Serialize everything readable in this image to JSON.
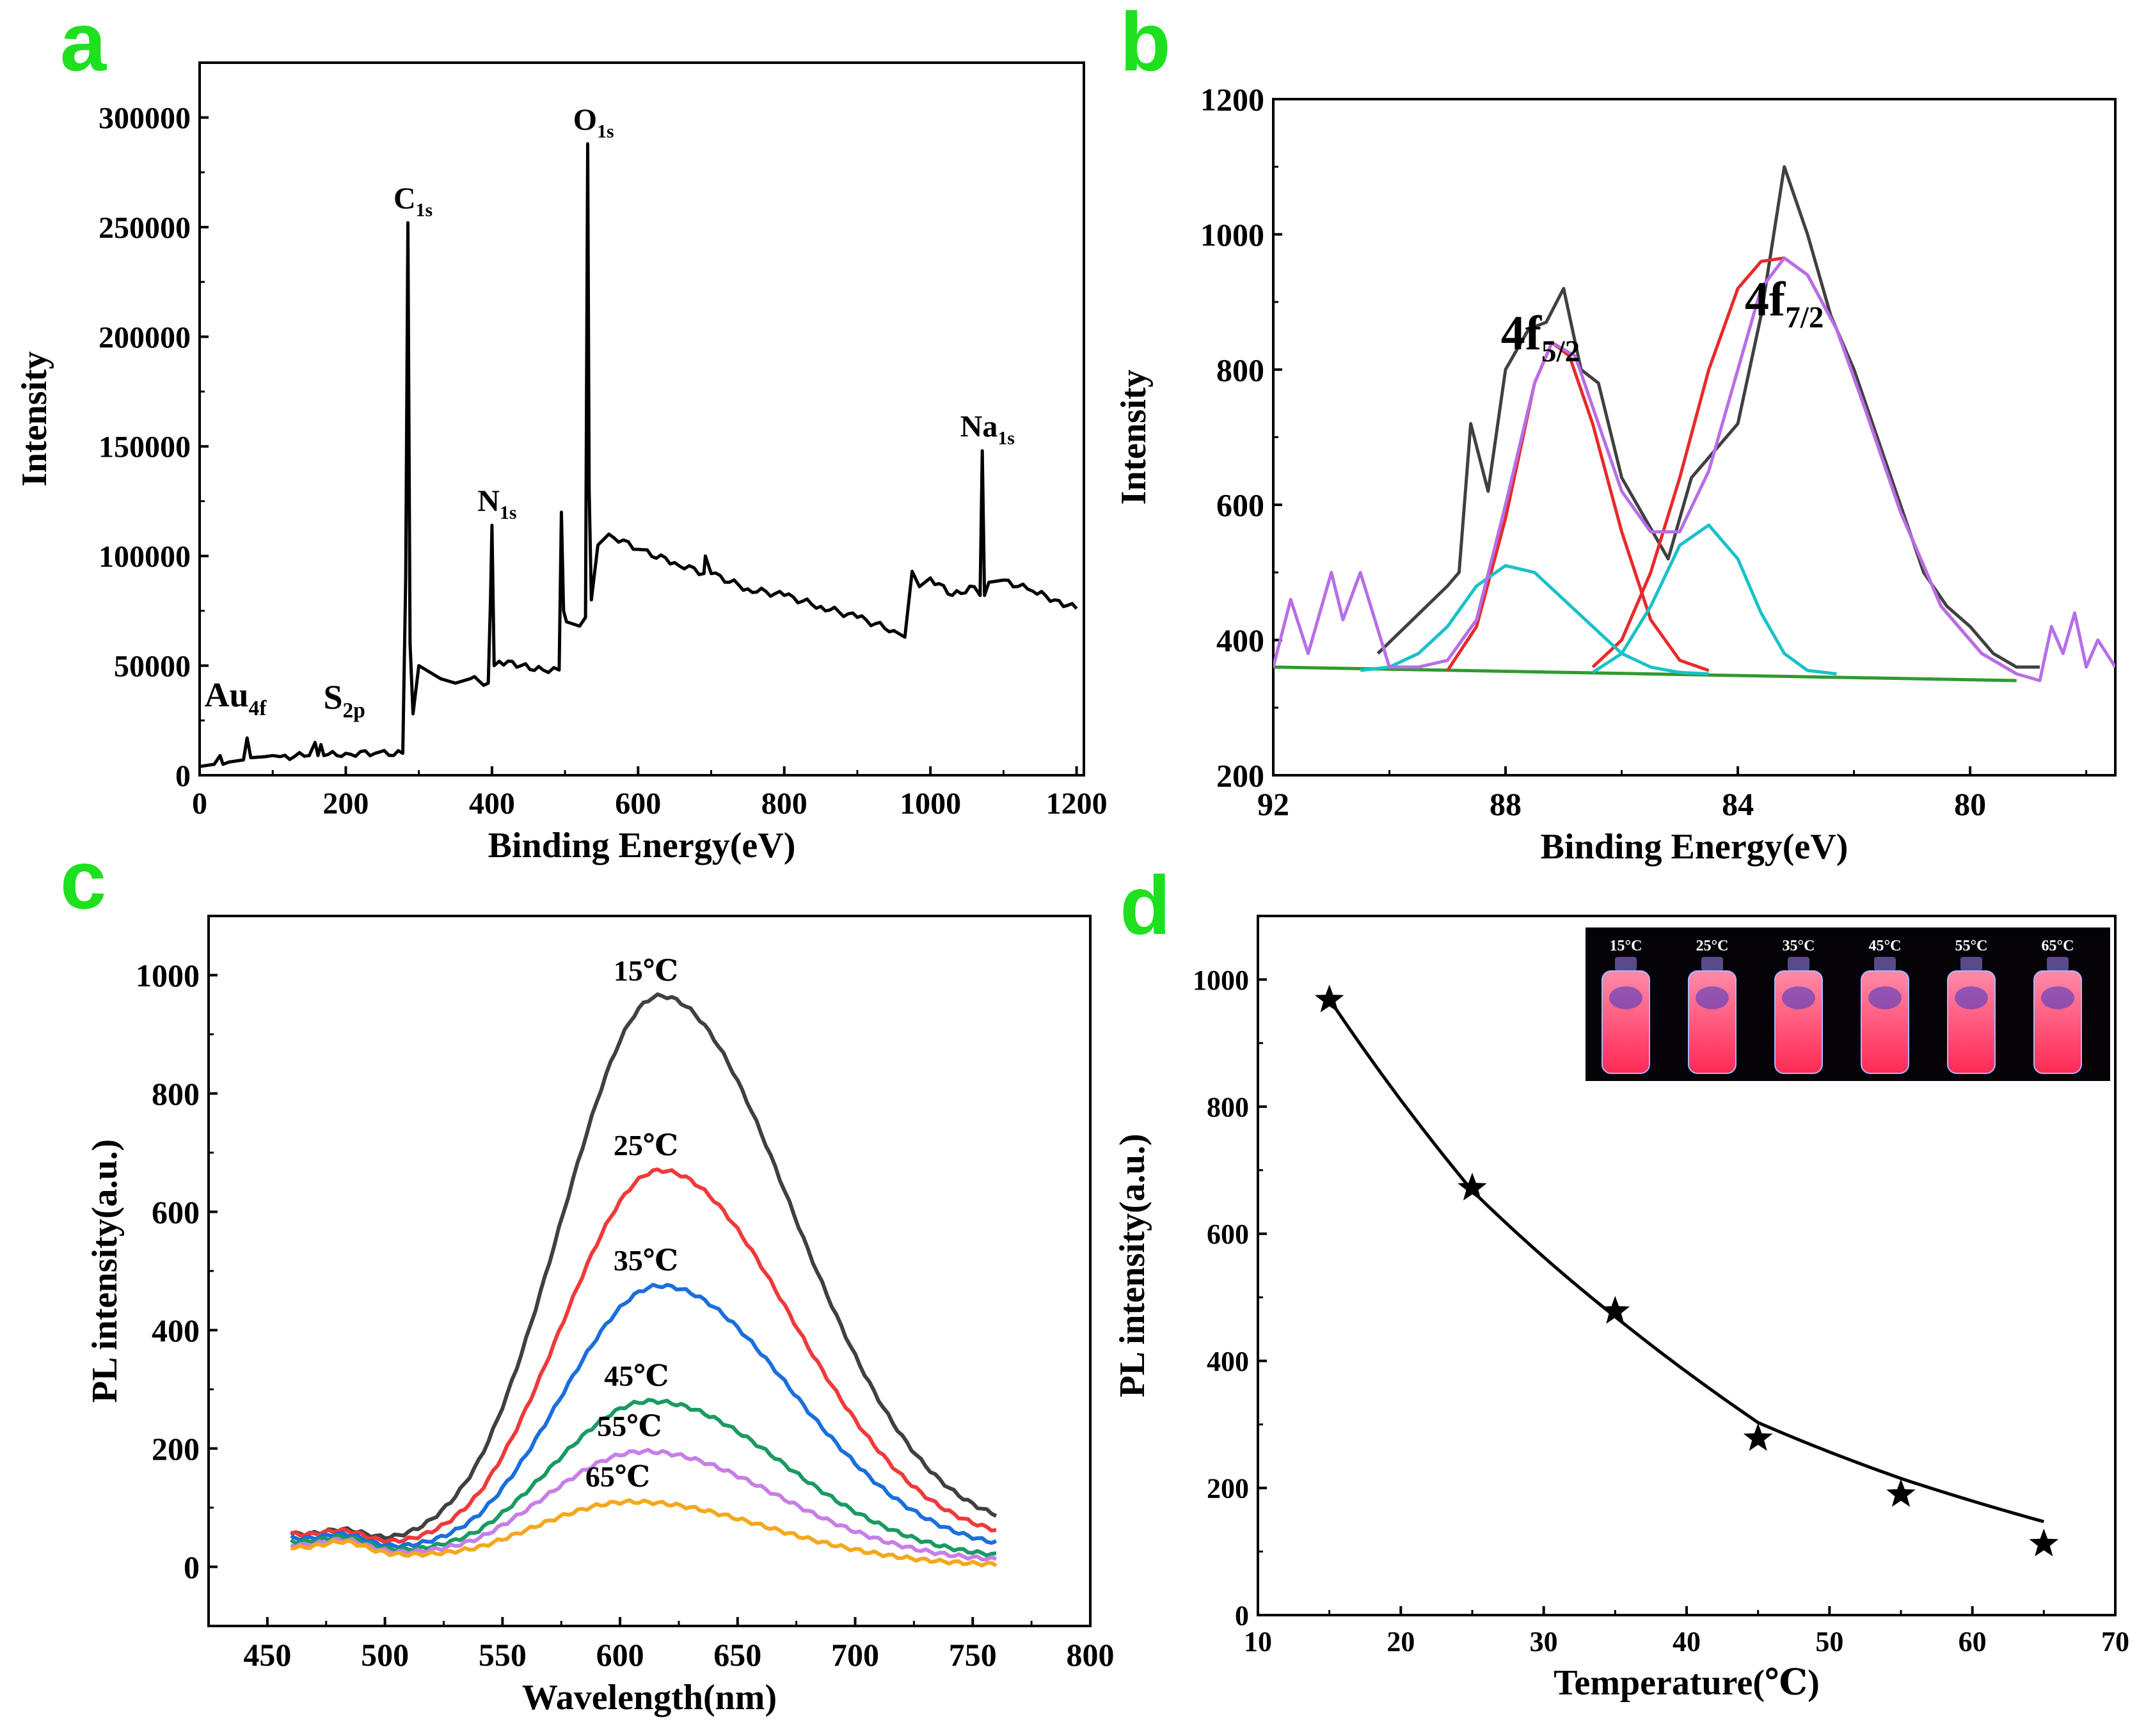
{
  "colors": {
    "panel_letter": "#1ee01e",
    "black": "#000000",
    "c_15": "#404040",
    "c_25": "#ef3a3a",
    "c_35": "#1a6fdc",
    "c_45": "#1a9a62",
    "c_55": "#c77ee6",
    "c_65": "#f4a81c",
    "b_raw": "#404040",
    "b_env": "#b76ee8",
    "b_red": "#e82a2a",
    "b_cyan": "#18c2c8",
    "b_base": "#2f9a2f"
  },
  "chart_data": [
    {
      "id": "a",
      "panel_letter": "a",
      "type": "line",
      "title": "",
      "xlabel": "Binding Energy(eV)",
      "ylabel": "Intensity",
      "xlim": [
        0,
        1210
      ],
      "ylim": [
        0,
        325000
      ],
      "xticks": [
        "0",
        "200",
        "400",
        "600",
        "800",
        "1000",
        "1200"
      ],
      "yticks": [
        "0",
        "50000",
        "100000",
        "150000",
        "200000",
        "250000",
        "300000"
      ],
      "peaks": [
        {
          "name": "Au",
          "sub": "4f",
          "x": 84,
          "y": 8000
        },
        {
          "name": "S",
          "sub": "2p",
          "x": 163,
          "y": 7000
        },
        {
          "name": "C",
          "sub": "1s",
          "x": 285,
          "y": 252000
        },
        {
          "name": "N",
          "sub": "1s",
          "x": 400,
          "y": 114000
        },
        {
          "name": "O",
          "sub": "1s",
          "x": 532,
          "y": 288000
        },
        {
          "name": "Na",
          "sub": "1s",
          "x": 1071,
          "y": 148000
        }
      ],
      "series": [
        {
          "name": "survey",
          "x": [
            0,
            20,
            28,
            32,
            40,
            60,
            65,
            70,
            90,
            100,
            110,
            150,
            158,
            162,
            166,
            170,
            200,
            240,
            278,
            282,
            285,
            288,
            292,
            300,
            310,
            330,
            350,
            370,
            395,
            398,
            400,
            403,
            410,
            440,
            470,
            492,
            495,
            498,
            502,
            520,
            528,
            531,
            533,
            536,
            545,
            560,
            600,
            650,
            690,
            692,
            700,
            750,
            800,
            850,
            900,
            950,
            965,
            975,
            985,
            1000,
            1030,
            1060,
            1068,
            1071,
            1074,
            1080,
            1100,
            1140,
            1170,
            1200
          ],
          "y": [
            4000,
            5000,
            9000,
            5000,
            6000,
            7000,
            17000,
            8000,
            8500,
            9000,
            8500,
            9000,
            15000,
            9000,
            14000,
            9000,
            10000,
            10000,
            10000,
            90000,
            252000,
            60000,
            28000,
            50000,
            48000,
            44000,
            42000,
            44000,
            42000,
            80000,
            114000,
            50000,
            52000,
            50000,
            48000,
            48000,
            120000,
            75000,
            70000,
            68000,
            72000,
            288000,
            130000,
            80000,
            105000,
            110000,
            103000,
            97000,
            92000,
            100000,
            92000,
            85000,
            82000,
            77000,
            72000,
            66000,
            63000,
            93000,
            86000,
            90000,
            82000,
            86000,
            82000,
            148000,
            82000,
            88000,
            89000,
            84000,
            80000,
            76000
          ]
        }
      ]
    },
    {
      "id": "b",
      "panel_letter": "b",
      "type": "line",
      "title": "",
      "xlabel": "Binding Energy(eV)",
      "ylabel": "Intensity",
      "xlim": [
        92,
        77.5
      ],
      "ylim": [
        200,
        1200
      ],
      "xticks": [
        "92",
        "88",
        "84",
        "80"
      ],
      "yticks": [
        "200",
        "400",
        "600",
        "800",
        "1000",
        "1200"
      ],
      "annotations": [
        {
          "text": "4f",
          "sub": "5/2",
          "x": 87.4,
          "y": 830
        },
        {
          "text": "4f",
          "sub": "7/2",
          "x": 83.2,
          "y": 880
        }
      ],
      "series": [
        {
          "name": "raw",
          "x": [
            90.2,
            89.6,
            89.0,
            88.8,
            88.6,
            88.3,
            88.0,
            87.6,
            87.3,
            87.0,
            86.7,
            86.4,
            86.0,
            85.6,
            85.2,
            84.8,
            84.4,
            84.0,
            83.6,
            83.2,
            82.8,
            82.4,
            82.0,
            81.6,
            81.2,
            80.8,
            80.4,
            80.0,
            79.6,
            79.2,
            78.8
          ],
          "y": [
            380,
            430,
            480,
            500,
            720,
            620,
            800,
            860,
            870,
            920,
            800,
            780,
            640,
            580,
            520,
            640,
            680,
            720,
            880,
            1100,
            1000,
            880,
            800,
            700,
            600,
            500,
            450,
            420,
            380,
            360,
            360
          ]
        },
        {
          "name": "envelope",
          "x": [
            92.0,
            91.7,
            91.4,
            91.0,
            90.8,
            90.5,
            90.0,
            89.5,
            89.0,
            88.5,
            88.0,
            87.5,
            87.2,
            86.8,
            86.4,
            86.0,
            85.5,
            85.0,
            84.5,
            84.0,
            83.6,
            83.2,
            82.8,
            82.3,
            81.8,
            81.2,
            80.5,
            79.8,
            79.2,
            78.8,
            78.6,
            78.4,
            78.2,
            78.0,
            77.8,
            77.5
          ],
          "y": [
            360,
            460,
            380,
            500,
            430,
            500,
            360,
            360,
            370,
            430,
            600,
            780,
            840,
            820,
            720,
            620,
            560,
            560,
            650,
            800,
            920,
            965,
            940,
            860,
            740,
            590,
            450,
            380,
            350,
            340,
            420,
            380,
            440,
            360,
            400,
            360
          ]
        },
        {
          "name": "fit_5_2",
          "x": [
            89.0,
            88.5,
            88.0,
            87.5,
            87.2,
            86.9,
            86.5,
            86.0,
            85.5,
            85.0,
            84.5
          ],
          "y": [
            355,
            420,
            580,
            780,
            840,
            820,
            720,
            560,
            430,
            370,
            355
          ]
        },
        {
          "name": "fit_7_2",
          "x": [
            86.5,
            86.0,
            85.5,
            85.0,
            84.5,
            84.0,
            83.6,
            83.2,
            82.8,
            82.3,
            81.8,
            81.2,
            80.5,
            79.8,
            79.2
          ],
          "y": [
            360,
            400,
            500,
            640,
            800,
            920,
            960,
            965,
            940,
            860,
            740,
            590,
            450,
            380,
            350
          ]
        },
        {
          "name": "cyan_1",
          "x": [
            90.5,
            90.0,
            89.5,
            89.0,
            88.5,
            88.0,
            87.5,
            87.0,
            86.5,
            86.0,
            85.5,
            85.0,
            84.5
          ],
          "y": [
            355,
            360,
            380,
            420,
            480,
            510,
            500,
            460,
            420,
            380,
            360,
            352,
            350
          ]
        },
        {
          "name": "cyan_2",
          "x": [
            86.5,
            86.0,
            85.5,
            85.0,
            84.5,
            84.0,
            83.6,
            83.2,
            82.8,
            82.3
          ],
          "y": [
            352,
            380,
            450,
            540,
            570,
            520,
            440,
            380,
            355,
            350
          ]
        },
        {
          "name": "baseline",
          "x": [
            92,
            79.2
          ],
          "y": [
            360,
            340
          ]
        }
      ]
    },
    {
      "id": "c",
      "panel_letter": "c",
      "type": "line",
      "title": "",
      "xlabel": "Wavelength(nm)",
      "ylabel": "PL intensity(a.u.)",
      "xlim": [
        425,
        800
      ],
      "ylim": [
        -100,
        1100
      ],
      "xticks": [
        "450",
        "500",
        "550",
        "600",
        "650",
        "700",
        "750",
        "800"
      ],
      "yticks": [
        "0",
        "200",
        "400",
        "600",
        "800",
        "1000"
      ],
      "series": [
        {
          "name": "15℃",
          "peak_x": 617,
          "peak_y": 965,
          "end_y": 70
        },
        {
          "name": "25℃",
          "peak_x": 617,
          "peak_y": 670,
          "end_y": 50
        },
        {
          "name": "35℃",
          "peak_x": 617,
          "peak_y": 475,
          "end_y": 30
        },
        {
          "name": "45℃",
          "peak_x": 613,
          "peak_y": 280,
          "end_y": 15
        },
        {
          "name": "55℃",
          "peak_x": 610,
          "peak_y": 195,
          "end_y": 10
        },
        {
          "name": "65℃",
          "peak_x": 605,
          "peak_y": 110,
          "end_y": 2
        }
      ],
      "x_range": [
        460,
        760
      ]
    },
    {
      "id": "d",
      "panel_letter": "d",
      "type": "scatter",
      "title": "",
      "xlabel": "Temperature(℃)",
      "ylabel": "PL intensity(a.u.)",
      "xlim": [
        10,
        70
      ],
      "ylim": [
        0,
        1100
      ],
      "xticks": [
        "10",
        "20",
        "30",
        "40",
        "50",
        "60",
        "70"
      ],
      "yticks": [
        "0",
        "200",
        "400",
        "600",
        "800",
        "1000"
      ],
      "x": [
        15,
        25,
        35,
        45,
        55,
        65
      ],
      "y": [
        968,
        672,
        478,
        278,
        190,
        112
      ],
      "inset_labels": [
        "15°C",
        "25°C",
        "35°C",
        "45°C",
        "55°C",
        "65°C"
      ]
    }
  ]
}
